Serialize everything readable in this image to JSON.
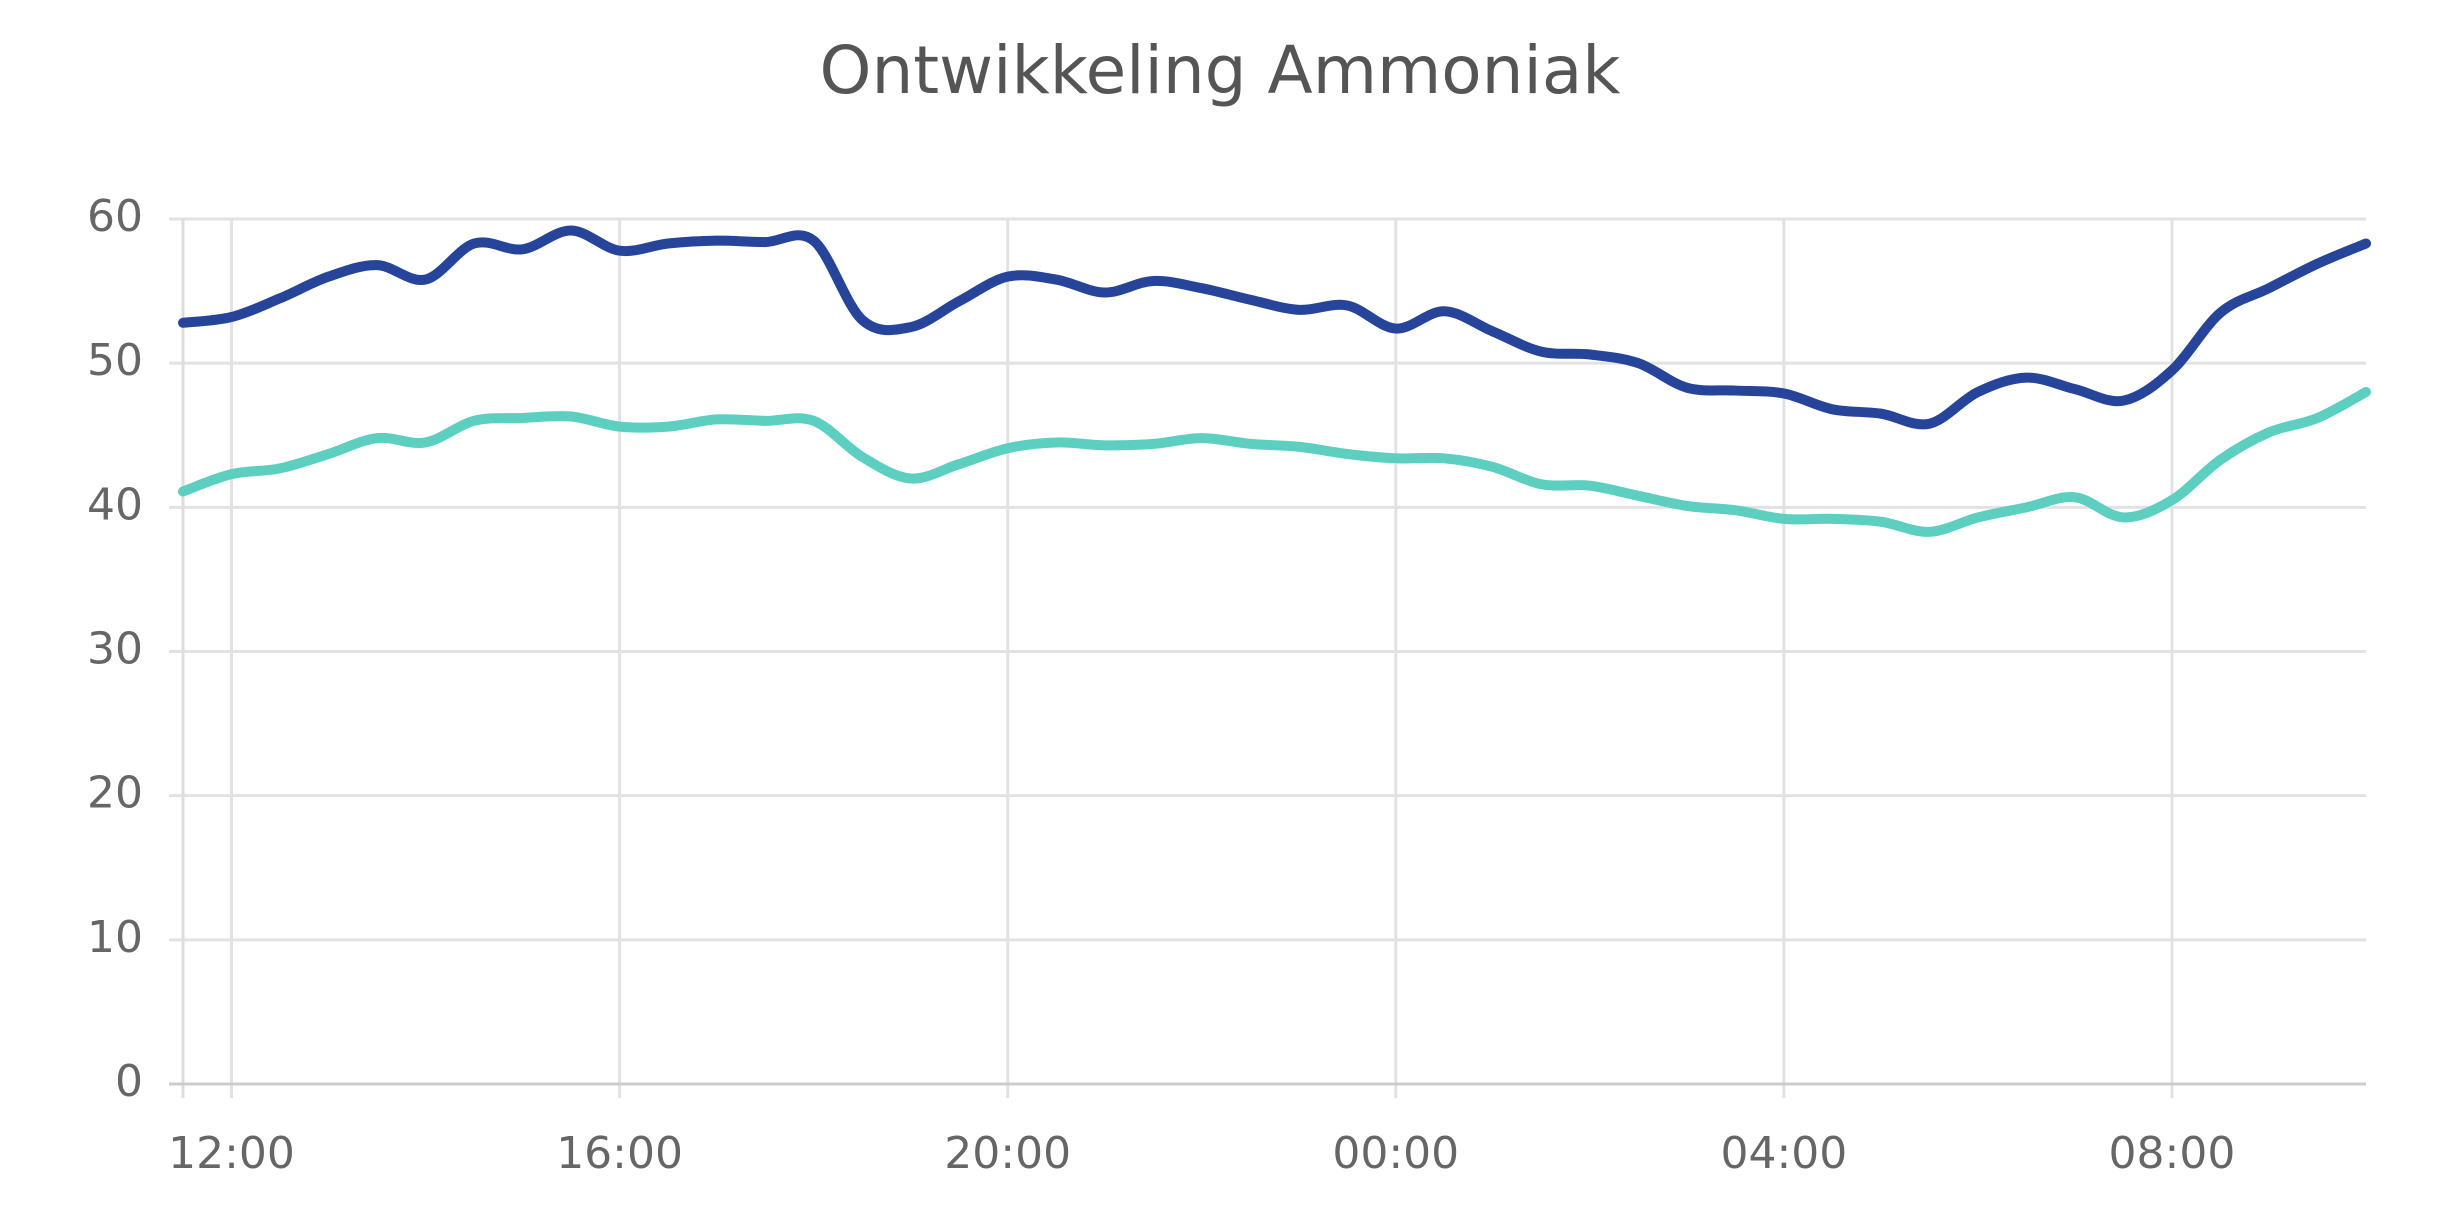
{
  "chart_data": {
    "type": "line",
    "title": "Ontwikkeling Ammoniak",
    "x": [
      11.5,
      12,
      12.5,
      13,
      13.5,
      14,
      14.5,
      15,
      15.5,
      16,
      16.5,
      17,
      17.5,
      18,
      18.5,
      19,
      19.5,
      20,
      20.5,
      21,
      21.5,
      22,
      22.5,
      23,
      23.5,
      24,
      24.5,
      25,
      25.5,
      26,
      26.5,
      27,
      27.5,
      28,
      28.5,
      29,
      29.5,
      30,
      30.5,
      31,
      31.5,
      32,
      32.5,
      33,
      33.5,
      34
    ],
    "series": [
      {
        "color": "#26449a",
        "values": [
          52.8,
          53.2,
          54.5,
          56,
          56.8,
          55.8,
          58.3,
          57.9,
          59.2,
          57.8,
          58.3,
          58.5,
          58.4,
          58.5,
          53,
          52.5,
          54.3,
          56,
          55.8,
          54.9,
          55.7,
          55.2,
          54.4,
          53.7,
          54,
          52.4,
          53.6,
          52.2,
          50.8,
          50.6,
          50,
          48.3,
          48.1,
          47.9,
          46.8,
          46.5,
          45.8,
          48,
          49,
          48.2,
          47.4,
          49.5,
          53.5,
          55.2,
          56.9,
          58.3
        ]
      },
      {
        "color": "#5ccfc0",
        "values": [
          41.1,
          42.3,
          42.7,
          43.7,
          44.8,
          44.5,
          46,
          46.2,
          46.3,
          45.6,
          45.6,
          46.1,
          46,
          46,
          43.5,
          42,
          43,
          44.1,
          44.5,
          44.3,
          44.4,
          44.8,
          44.4,
          44.2,
          43.7,
          43.4,
          43.4,
          42.8,
          41.6,
          41.5,
          40.8,
          40.1,
          39.8,
          39.2,
          39.2,
          39,
          38.3,
          39.3,
          40,
          40.7,
          39.3,
          40.5,
          43.3,
          45.2,
          46.2,
          48
        ]
      }
    ],
    "xlim": [
      11.5,
      34
    ],
    "xticks": [
      {
        "value": 12,
        "label": "12:00"
      },
      {
        "value": 16,
        "label": "16:00"
      },
      {
        "value": 20,
        "label": "20:00"
      },
      {
        "value": 24,
        "label": "00:00"
      },
      {
        "value": 28,
        "label": "04:00"
      },
      {
        "value": 32,
        "label": "08:00"
      }
    ],
    "ylim": [
      0,
      60
    ],
    "yticks": [
      0,
      10,
      20,
      30,
      40,
      50,
      60
    ],
    "grid": true
  }
}
